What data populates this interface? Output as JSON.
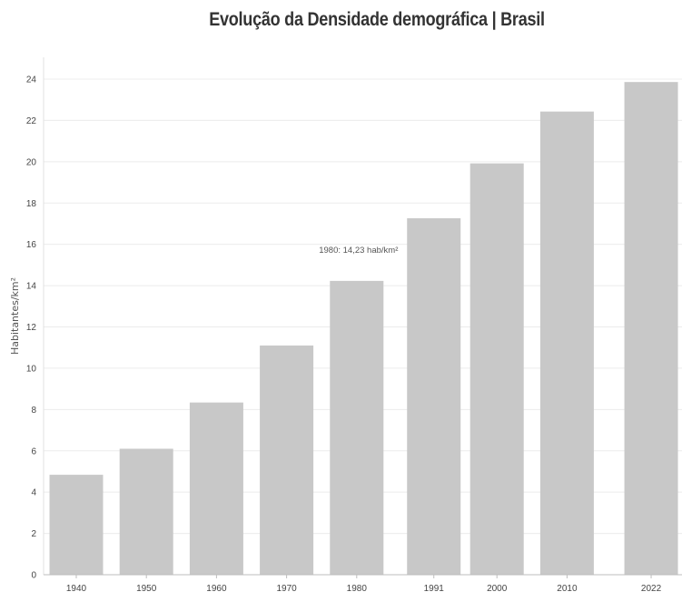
{
  "chart_data": {
    "type": "bar",
    "title": "Evolução da Densidade demográfica | Brasil",
    "xlabel": "",
    "ylabel": "Habitantes/km²",
    "categories": [
      "1940",
      "1950",
      "1960",
      "1970",
      "1980",
      "1991",
      "2000",
      "2010",
      "2022"
    ],
    "x": [
      1940,
      1950,
      1960,
      1970,
      1980,
      1991,
      2000,
      2010,
      2022
    ],
    "values": [
      4.84,
      6.1,
      8.34,
      11.1,
      14.23,
      17.26,
      19.92,
      22.43,
      23.86
    ],
    "ylim": [
      0,
      24
    ],
    "yticks": [
      "0",
      "2",
      "4",
      "6",
      "8",
      "10",
      "12",
      "14",
      "16",
      "18",
      "20",
      "22",
      "24"
    ],
    "grid": true,
    "legend": "none",
    "bar_color": "#c8c8c8",
    "grid_color": "#ececec",
    "annotation": {
      "text": "1980: 14,23 hab/km²",
      "x": 1980,
      "y": 15.6
    }
  }
}
